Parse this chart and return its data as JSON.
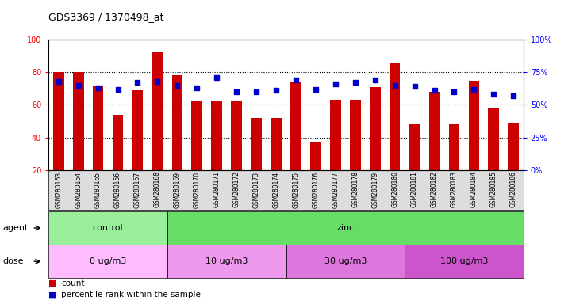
{
  "title": "GDS3369 / 1370498_at",
  "samples": [
    "GSM280163",
    "GSM280164",
    "GSM280165",
    "GSM280166",
    "GSM280167",
    "GSM280168",
    "GSM280169",
    "GSM280170",
    "GSM280171",
    "GSM280172",
    "GSM280173",
    "GSM280174",
    "GSM280175",
    "GSM280176",
    "GSM280177",
    "GSM280178",
    "GSM280179",
    "GSM280180",
    "GSM280181",
    "GSM280182",
    "GSM280183",
    "GSM280184",
    "GSM280185",
    "GSM280186"
  ],
  "count_values": [
    80,
    80,
    72,
    54,
    69,
    92,
    78,
    62,
    62,
    62,
    52,
    52,
    74,
    37,
    63,
    63,
    71,
    86,
    48,
    68,
    48,
    75,
    58,
    49
  ],
  "percentile_values": [
    68,
    65,
    63,
    62,
    67,
    68,
    65,
    63,
    71,
    60,
    60,
    61,
    69,
    62,
    66,
    67,
    69,
    65,
    64,
    61,
    60,
    62,
    58,
    57
  ],
  "bar_color": "#cc0000",
  "dot_color": "#0000cc",
  "ylim_left": [
    20,
    100
  ],
  "ylim_right": [
    0,
    100
  ],
  "yticks_left": [
    20,
    40,
    60,
    80,
    100
  ],
  "yticks_right": [
    0,
    25,
    50,
    75,
    100
  ],
  "grid_values": [
    40,
    60,
    80
  ],
  "agent_groups": [
    {
      "label": "control",
      "start": 0,
      "end": 6,
      "color": "#99ee99"
    },
    {
      "label": "zinc",
      "start": 6,
      "end": 24,
      "color": "#66dd66"
    }
  ],
  "dose_groups": [
    {
      "label": "0 ug/m3",
      "start": 0,
      "end": 6,
      "color": "#ffbbff"
    },
    {
      "label": "10 ug/m3",
      "start": 6,
      "end": 12,
      "color": "#ee99ee"
    },
    {
      "label": "30 ug/m3",
      "start": 12,
      "end": 18,
      "color": "#dd77dd"
    },
    {
      "label": "100 ug/m3",
      "start": 18,
      "end": 24,
      "color": "#cc55cc"
    }
  ],
  "legend_count_color": "#cc0000",
  "legend_dot_color": "#0000cc",
  "plot_bg": "#ffffff",
  "xtick_bg": "#dddddd"
}
